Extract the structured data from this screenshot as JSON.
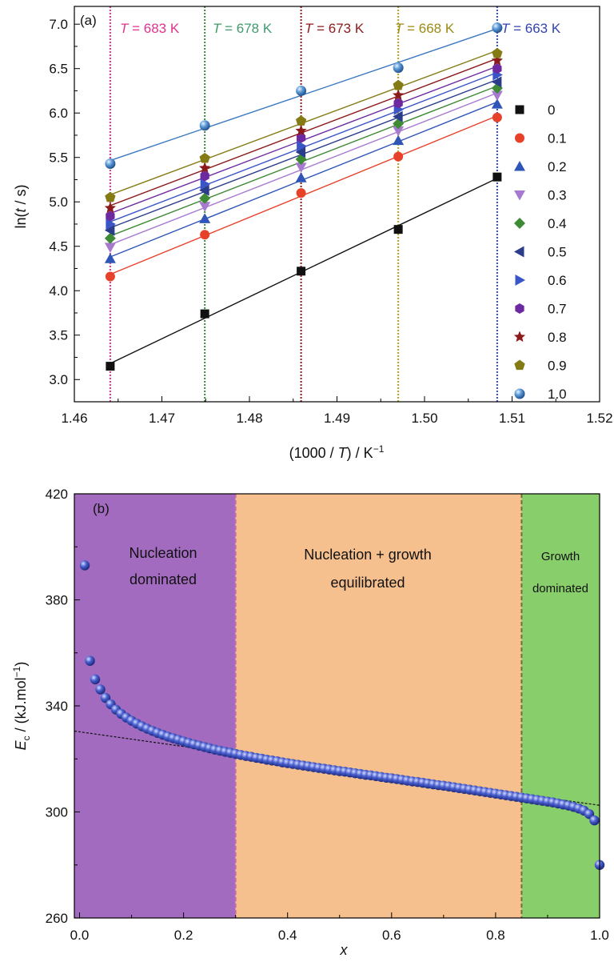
{
  "chart_data": [
    {
      "panel": "(a)",
      "type": "scatter",
      "xlabel_parts": [
        "(1000 / ",
        "T",
        ") / K",
        "−1"
      ],
      "ylabel_parts": [
        "ln(",
        "t",
        " / s)"
      ],
      "xlim": [
        1.46,
        1.52
      ],
      "ylim": [
        2.75,
        7.2
      ],
      "xticks": [
        1.46,
        1.47,
        1.48,
        1.49,
        1.5,
        1.51,
        1.52
      ],
      "xtick_labels": [
        "1.46",
        "1.47",
        "1.48",
        "1.49",
        "1.50",
        "1.51",
        "1.52"
      ],
      "yticks": [
        3.0,
        3.5,
        4.0,
        4.5,
        5.0,
        5.5,
        6.0,
        6.5,
        7.0
      ],
      "ytick_labels": [
        "3.0",
        "3.5",
        "4.0",
        "4.5",
        "5.0",
        "5.5",
        "6.0",
        "6.5",
        "7.0"
      ],
      "x": [
        1.4641,
        1.4749,
        1.4859,
        1.497,
        1.5083
      ],
      "temperatures": [
        {
          "x": 1.4641,
          "prefix": "T",
          "text": " = 683 K",
          "color": "#e0338e"
        },
        {
          "x": 1.4749,
          "prefix": "T",
          "text": " = 678 K",
          "color": "#3f9b6b"
        },
        {
          "x": 1.4859,
          "prefix": "T",
          "text": " = 673 K",
          "color": "#8b1a1a"
        },
        {
          "x": 1.497,
          "prefix": "T",
          "text": " = 668 K",
          "color": "#9c8a14"
        },
        {
          "x": 1.5083,
          "prefix": "T",
          "text": " = 663 K",
          "color": "#3443b0"
        }
      ],
      "vline_colors": [
        "#e0338e",
        "#3a8a3a",
        "#8b1a1a",
        "#b5a11c",
        "#2f45c8"
      ],
      "legend_placement": "right",
      "series": [
        {
          "name": "0",
          "marker": "square",
          "color": "#111111",
          "values": [
            3.15,
            3.74,
            4.22,
            4.69,
            5.28
          ]
        },
        {
          "name": "0.1",
          "marker": "circle",
          "color": "#e8412a",
          "values": [
            4.16,
            4.63,
            5.1,
            5.51,
            5.95
          ]
        },
        {
          "name": "0.2",
          "marker": "triangle",
          "color": "#2f55b8",
          "values": [
            4.36,
            4.81,
            5.27,
            5.69,
            6.1
          ]
        },
        {
          "name": "0.3",
          "marker": "tri-down",
          "color": "#a77ad0",
          "values": [
            4.49,
            4.95,
            5.39,
            5.8,
            6.2
          ]
        },
        {
          "name": "0.4",
          "marker": "diamond",
          "color": "#3f8a35",
          "values": [
            4.59,
            5.04,
            5.48,
            5.88,
            6.28
          ]
        },
        {
          "name": "0.5",
          "marker": "tri-left",
          "color": "#2a3c8a",
          "values": [
            4.68,
            5.13,
            5.56,
            5.96,
            6.35
          ]
        },
        {
          "name": "0.6",
          "marker": "tri-right",
          "color": "#3a55c8",
          "values": [
            4.75,
            5.2,
            5.63,
            6.04,
            6.43
          ]
        },
        {
          "name": "0.7",
          "marker": "hexagon",
          "color": "#6d2aa0",
          "values": [
            4.84,
            5.29,
            5.72,
            6.11,
            6.5
          ]
        },
        {
          "name": "0.8",
          "marker": "star",
          "color": "#8b1a1a",
          "values": [
            4.93,
            5.38,
            5.8,
            6.2,
            6.59
          ]
        },
        {
          "name": "0.9",
          "marker": "pentagon",
          "color": "#857b15",
          "values": [
            5.05,
            5.49,
            5.91,
            6.31,
            6.67
          ]
        },
        {
          "name": "1.0",
          "marker": "ball",
          "color": "#3a78c2",
          "values": [
            5.43,
            5.86,
            6.25,
            6.51,
            6.96
          ]
        }
      ]
    },
    {
      "panel": "(b)",
      "type": "scatter",
      "xlabel": "x",
      "ylabel_parts": [
        "E",
        "c",
        " / (kJ.mol",
        "−1",
        ")"
      ],
      "xlim": [
        -0.01,
        1.0
      ],
      "ylim": [
        260,
        420
      ],
      "xticks": [
        0.0,
        0.2,
        0.4,
        0.6,
        0.8,
        1.0
      ],
      "xtick_labels": [
        "0.0",
        "0.2",
        "0.4",
        "0.6",
        "0.8",
        "1.0"
      ],
      "yticks": [
        260,
        300,
        340,
        380,
        420
      ],
      "ytick_labels": [
        "260",
        "300",
        "340",
        "380",
        "420"
      ],
      "regions": [
        {
          "from": -0.01,
          "to": 0.3,
          "color": "#a36bc0",
          "lines": [
            "Nucleation",
            "dominated"
          ]
        },
        {
          "from": 0.3,
          "to": 0.85,
          "color": "#f6c08e",
          "lines": [
            "Nucleation + growth",
            "equilibrated"
          ]
        },
        {
          "from": 0.85,
          "to": 1.0,
          "color": "#88cf6c",
          "lines": [
            "Growth",
            "dominated"
          ]
        }
      ],
      "fit_line": {
        "x": [
          -0.01,
          1.0
        ],
        "y": [
          330.5,
          302.5
        ]
      },
      "point_color": "#2e45b8",
      "points_x": [
        0.01,
        0.02,
        0.03,
        0.04,
        0.05,
        0.06,
        0.07,
        0.08,
        0.09,
        0.1,
        0.11,
        0.12,
        0.13,
        0.14,
        0.15,
        0.16,
        0.17,
        0.18,
        0.19,
        0.2,
        0.21,
        0.22,
        0.23,
        0.24,
        0.25,
        0.26,
        0.27,
        0.28,
        0.29,
        0.3,
        0.31,
        0.32,
        0.33,
        0.34,
        0.35,
        0.36,
        0.37,
        0.38,
        0.39,
        0.4,
        0.41,
        0.42,
        0.43,
        0.44,
        0.45,
        0.46,
        0.47,
        0.48,
        0.49,
        0.5,
        0.51,
        0.52,
        0.53,
        0.54,
        0.55,
        0.56,
        0.57,
        0.58,
        0.59,
        0.6,
        0.61,
        0.62,
        0.63,
        0.64,
        0.65,
        0.66,
        0.67,
        0.68,
        0.69,
        0.7,
        0.71,
        0.72,
        0.73,
        0.74,
        0.75,
        0.76,
        0.77,
        0.78,
        0.79,
        0.8,
        0.81,
        0.82,
        0.83,
        0.84,
        0.85,
        0.86,
        0.87,
        0.88,
        0.89,
        0.9,
        0.91,
        0.92,
        0.93,
        0.94,
        0.95,
        0.96,
        0.97,
        0.98,
        0.99,
        1.0
      ],
      "points_y": [
        393.0,
        357.0,
        350.0,
        346.2,
        343.0,
        340.6,
        338.6,
        337.0,
        335.6,
        334.4,
        333.3,
        332.3,
        331.4,
        330.6,
        329.8,
        329.1,
        328.4,
        327.8,
        327.2,
        326.6,
        326.0,
        325.5,
        325.0,
        324.5,
        324.0,
        323.5,
        323.1,
        322.7,
        322.3,
        321.9,
        321.5,
        321.1,
        320.8,
        320.4,
        320.1,
        319.7,
        319.4,
        319.1,
        318.7,
        318.4,
        318.1,
        317.8,
        317.5,
        317.2,
        316.9,
        316.6,
        316.3,
        316.0,
        315.7,
        315.4,
        315.2,
        314.9,
        314.6,
        314.3,
        314.0,
        313.8,
        313.5,
        313.2,
        312.9,
        312.7,
        312.4,
        312.1,
        311.8,
        311.5,
        311.3,
        311.0,
        310.7,
        310.4,
        310.1,
        309.9,
        309.6,
        309.3,
        309.0,
        308.7,
        308.4,
        308.1,
        307.8,
        307.5,
        307.2,
        306.9,
        306.6,
        306.3,
        306.0,
        305.7,
        305.4,
        305.1,
        304.8,
        304.5,
        304.2,
        303.9,
        303.6,
        303.2,
        302.8,
        302.4,
        301.9,
        301.3,
        300.5,
        299.2,
        296.8,
        280.0
      ]
    }
  ]
}
